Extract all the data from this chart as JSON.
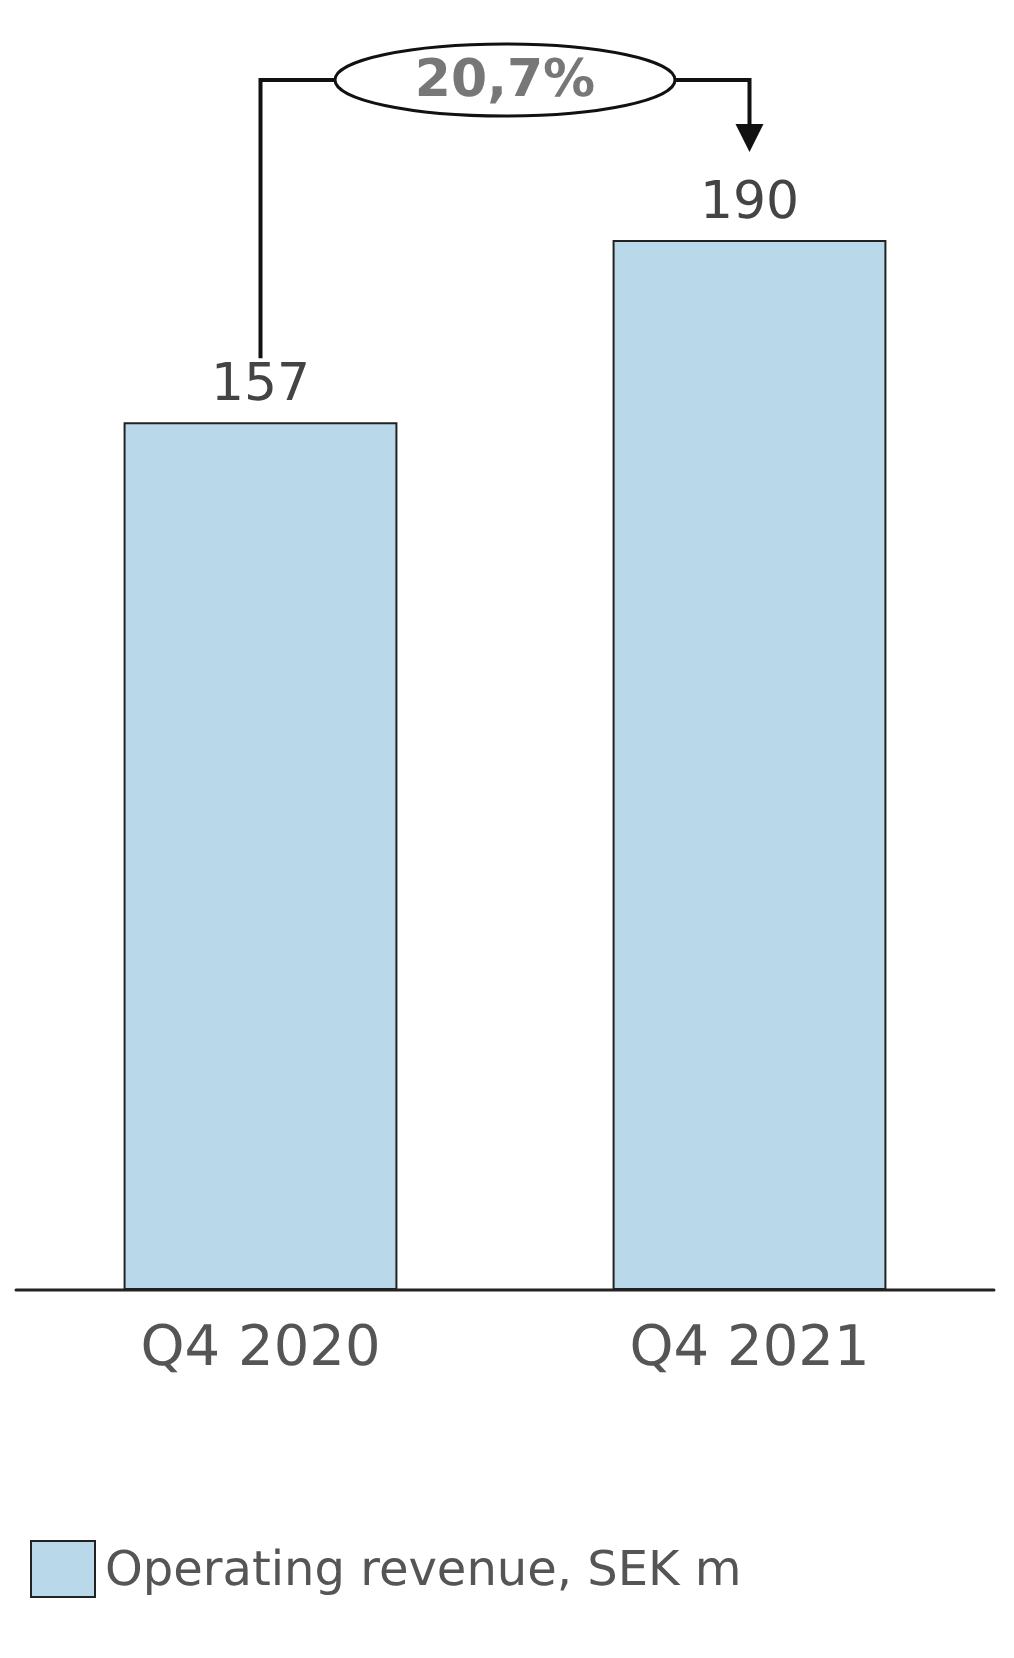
{
  "chart_data": {
    "type": "bar",
    "categories": [
      "Q4 2020",
      "Q4 2021"
    ],
    "series": [
      {
        "name": "Operating revenue, SEK m",
        "color": "#b9d9ea",
        "values": [
          157,
          190
        ]
      }
    ],
    "data_labels": true,
    "legend": "bottom left",
    "annotations": [
      "20,7%"
    ]
  }
}
